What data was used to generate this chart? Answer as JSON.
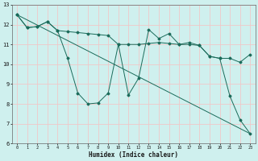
{
  "xlabel": "Humidex (Indice chaleur)",
  "bg_color": "#cff0ee",
  "line_color": "#1a6b5a",
  "grid_color": "#f0c8c8",
  "xlim": [
    -0.5,
    23.5
  ],
  "ylim": [
    6,
    13
  ],
  "xticks": [
    0,
    1,
    2,
    3,
    4,
    5,
    6,
    7,
    8,
    9,
    10,
    11,
    12,
    13,
    14,
    15,
    16,
    17,
    18,
    19,
    20,
    21,
    22,
    23
  ],
  "yticks": [
    6,
    7,
    8,
    9,
    10,
    11,
    12,
    13
  ],
  "line1_x": [
    0,
    1,
    2,
    3,
    4,
    5,
    6,
    7,
    8,
    9,
    10,
    11,
    12,
    13,
    14,
    15,
    16,
    17,
    18,
    19,
    20,
    21,
    22,
    23
  ],
  "line1_y": [
    12.5,
    11.85,
    11.9,
    12.15,
    11.7,
    11.65,
    11.6,
    11.55,
    11.5,
    11.45,
    11.0,
    11.0,
    11.0,
    11.05,
    11.1,
    11.05,
    11.0,
    11.0,
    10.95,
    10.4,
    10.3,
    10.3,
    10.1,
    10.5
  ],
  "line2_x": [
    0,
    1,
    2,
    3,
    4,
    5,
    6,
    7,
    8,
    9,
    10,
    11,
    12,
    13,
    14,
    15,
    16,
    17,
    18,
    19,
    20,
    21,
    22,
    23
  ],
  "line2_y": [
    12.5,
    11.85,
    11.9,
    12.15,
    11.7,
    10.3,
    8.55,
    8.0,
    8.05,
    8.55,
    11.0,
    8.45,
    9.3,
    11.75,
    11.3,
    11.55,
    11.0,
    11.1,
    10.95,
    10.4,
    10.3,
    8.4,
    7.2,
    6.5
  ],
  "line3_x": [
    0,
    23
  ],
  "line3_y": [
    12.5,
    6.5
  ]
}
